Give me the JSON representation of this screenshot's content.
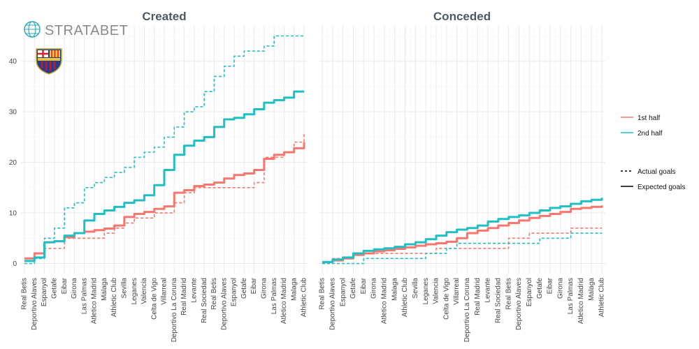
{
  "brand": {
    "name": "STRATABET",
    "logo": "globe-icon",
    "team_crest": "barcelona-crest"
  },
  "colors": {
    "first_half": "#F8766D",
    "second_half": "#1FBFC3",
    "grid": "#e9e9e9",
    "title": "#4a5a66"
  },
  "legend": {
    "color_entries": [
      "1st half",
      "2nd half"
    ],
    "linetype_entries": [
      "Actual goals",
      "Expected goals"
    ]
  },
  "chart_data": [
    {
      "type": "line",
      "title": "Created",
      "step": true,
      "categories": [
        "Real Betis",
        "Deportivo Alaves",
        "Espanyol",
        "Getafe",
        "Eibar",
        "Girona",
        "Las Palmas",
        "Atletico Madrid",
        "Malaga",
        "Athletic Club",
        "Sevilla",
        "Leganes",
        "Valencia",
        "Celta de Vigo",
        "Villarreal",
        "Deportivo La Coruna",
        "Real Madrid",
        "Levante",
        "Real Sociedad",
        "Real Betis",
        "Deportivo Alaves",
        "Espanyol",
        "Getafe",
        "Eibar",
        "Girona",
        "Las Palmas",
        "Atletico Madrid",
        "Malaga",
        "Athletic Club"
      ],
      "ylim": [
        -2,
        47
      ],
      "yticks": [
        0,
        10,
        20,
        30,
        40
      ],
      "grid": true,
      "legend_position": "right",
      "series": [
        {
          "name": "1st half",
          "measure": "Expected goals",
          "values": [
            1.0,
            2.0,
            4.2,
            4.4,
            5.2,
            6.0,
            6.3,
            6.6,
            6.9,
            7.5,
            9.2,
            9.8,
            10.2,
            10.8,
            11.3,
            14.0,
            14.5,
            15.3,
            15.6,
            16.0,
            16.8,
            17.5,
            17.8,
            18.5,
            20.7,
            21.5,
            22.0,
            22.8,
            24.0
          ]
        },
        {
          "name": "2nd half",
          "measure": "Expected goals",
          "values": [
            0.5,
            1.2,
            4.2,
            4.4,
            5.5,
            6.0,
            8.5,
            9.8,
            10.5,
            11.2,
            12.0,
            12.5,
            13.5,
            15.5,
            18.5,
            21.5,
            23.3,
            24.3,
            25.0,
            27.0,
            28.5,
            28.8,
            29.5,
            30.5,
            31.8,
            32.3,
            32.8,
            34.0,
            34.0
          ]
        },
        {
          "name": "1st half",
          "measure": "Actual goals",
          "values": [
            1,
            2,
            3,
            3,
            5,
            5,
            5,
            5,
            6,
            7,
            8,
            9,
            9,
            10,
            10,
            12,
            14,
            15,
            15,
            15,
            15,
            15,
            15,
            16,
            21,
            21,
            22,
            24,
            26
          ]
        },
        {
          "name": "2nd half",
          "measure": "Actual goals",
          "values": [
            0,
            1,
            5,
            7,
            11,
            12,
            15,
            16,
            17,
            18,
            19,
            21,
            22,
            23,
            25,
            27,
            30,
            31,
            34,
            37,
            39,
            41,
            42,
            42,
            43,
            45,
            45,
            45,
            45
          ]
        }
      ]
    },
    {
      "type": "line",
      "title": "Conceded",
      "step": true,
      "categories": [
        "Real Betis",
        "Deportivo Alaves",
        "Espanyol",
        "Getafe",
        "Eibar",
        "Girona",
        "Atletico Madrid",
        "Malaga",
        "Athletic Club",
        "Sevilla",
        "Leganes",
        "Valencia",
        "Celta de Vigo",
        "Villarreal",
        "Deportivo La Coruna",
        "Real Madrid",
        "Levante",
        "Real Sociedad",
        "Real Betis",
        "Deportivo Alaves",
        "Espanyol",
        "Getafe",
        "Eibar",
        "Girona",
        "Las Palmas",
        "Atletico Madrid",
        "Malaga",
        "Athletic Club"
      ],
      "ylim": [
        -2,
        47
      ],
      "yticks": [
        0,
        10,
        20,
        30,
        40
      ],
      "grid": true,
      "series": [
        {
          "name": "1st half",
          "measure": "Expected goals",
          "values": [
            0.3,
            0.6,
            1.0,
            1.7,
            2.0,
            2.4,
            2.6,
            2.9,
            3.2,
            3.5,
            3.8,
            4.0,
            4.3,
            5.0,
            6.0,
            6.5,
            7.0,
            7.5,
            8.0,
            8.5,
            9.0,
            9.4,
            9.8,
            10.2,
            10.8,
            11.0,
            11.2,
            11.5
          ]
        },
        {
          "name": "2nd half",
          "measure": "Expected goals",
          "values": [
            0.3,
            0.8,
            1.2,
            2.0,
            2.5,
            2.8,
            3.0,
            3.3,
            3.8,
            4.2,
            4.8,
            5.5,
            6.2,
            6.7,
            7.0,
            7.5,
            8.3,
            8.8,
            9.2,
            9.5,
            10.0,
            10.5,
            11.0,
            11.3,
            11.8,
            12.3,
            12.6,
            13.0
          ]
        },
        {
          "name": "1st half",
          "measure": "Actual goals",
          "values": [
            0,
            1,
            1,
            2,
            2,
            2,
            2,
            2,
            2,
            2,
            2,
            3,
            3,
            3,
            3,
            3,
            3,
            3,
            5,
            5,
            6,
            6,
            6,
            6,
            7,
            7,
            7,
            7
          ]
        },
        {
          "name": "2nd half",
          "measure": "Actual goals",
          "values": [
            0,
            0,
            0,
            0,
            1,
            1,
            1,
            1,
            1,
            1,
            2,
            2,
            3,
            4,
            4,
            4,
            4,
            4,
            4,
            4,
            4,
            5,
            5,
            5,
            6,
            6,
            6,
            6
          ]
        }
      ]
    }
  ]
}
